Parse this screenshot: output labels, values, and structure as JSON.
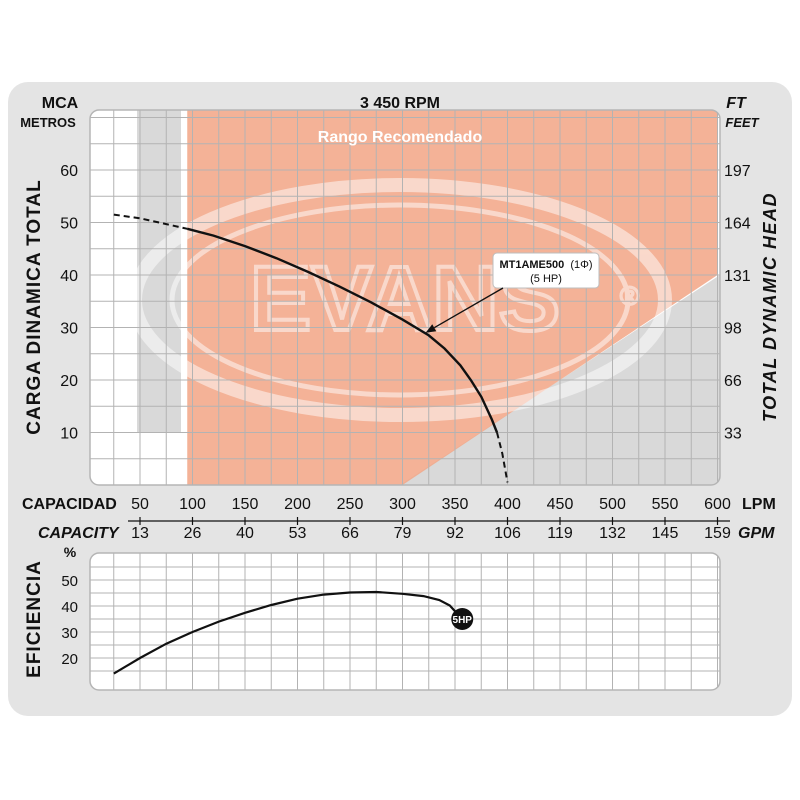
{
  "chart_data": [
    {
      "type": "line",
      "title": "3 450 RPM",
      "left_unit": "MCA",
      "left_unit_sub": "METROS",
      "right_unit": "FT",
      "right_unit_sub": "FEET",
      "ylabel": "CARGA DINAMICA TOTAL",
      "ylabel_right": "TOTAL DYNAMIC HEAD",
      "xlabel": "CAPACIDAD",
      "xlabel_unit": "LPM",
      "xlabel_secondary": "CAPACITY",
      "xlabel_secondary_unit": "GPM",
      "xlim": [
        25,
        600
      ],
      "ylim": [
        0,
        68
      ],
      "x_ticks": [
        50,
        100,
        150,
        200,
        250,
        300,
        350,
        400,
        450,
        500,
        550,
        600
      ],
      "gpm_ticks": [
        "13",
        "26",
        "40",
        "53",
        "66",
        "79",
        "92",
        "106",
        "119",
        "132",
        "145",
        "159"
      ],
      "y_ticks": [
        10,
        20,
        30,
        40,
        50,
        60
      ],
      "y_ticks_right": [
        "33",
        "66",
        "98",
        "131",
        "164",
        "197"
      ],
      "grid": true,
      "recommended_range": {
        "label": "Rango Recomendado",
        "x_start": 95,
        "x_end": 600,
        "color": "#f2a585"
      },
      "watermark": "EVANS",
      "series": [
        {
          "name": "MT1AME500 (1Φ)",
          "subname": "(5 HP)",
          "color": "#111111",
          "x": [
            25,
            50,
            75,
            95,
            120,
            150,
            180,
            210,
            240,
            270,
            300,
            325,
            340,
            355,
            365,
            375,
            385,
            390
          ],
          "y": [
            51.5,
            50.8,
            49.7,
            48.8,
            47.5,
            45.5,
            43.2,
            40.6,
            37.8,
            34.8,
            31.5,
            28.5,
            26.0,
            22.8,
            20.0,
            16.8,
            12.5,
            10.0
          ],
          "extension_x": [
            390,
            395,
            400
          ],
          "extension_y": [
            10.0,
            6.0,
            0.5
          ]
        }
      ],
      "annotation": {
        "label_bold": "MT1AME500",
        "label_rest": "(1Φ)",
        "label_line2": "(5 HP)",
        "point": [
          322,
          29
        ]
      }
    },
    {
      "type": "line",
      "ylabel": "EFICIENCIA",
      "ylabel_unit": "%",
      "xlim": [
        25,
        600
      ],
      "ylim": [
        13,
        56
      ],
      "y_ticks": [
        20,
        30,
        40,
        50
      ],
      "grid": true,
      "series": [
        {
          "name": "5HP",
          "color": "#111111",
          "x": [
            25,
            50,
            75,
            100,
            125,
            150,
            175,
            200,
            225,
            250,
            275,
            300,
            320,
            335,
            345,
            350,
            355
          ],
          "y": [
            14,
            20,
            25.5,
            30,
            34,
            37.4,
            40.4,
            42.8,
            44.4,
            45.2,
            45.4,
            44.7,
            43.8,
            42.3,
            40.2,
            38.0,
            35.0
          ],
          "end_marker": "5HP"
        }
      ]
    }
  ]
}
